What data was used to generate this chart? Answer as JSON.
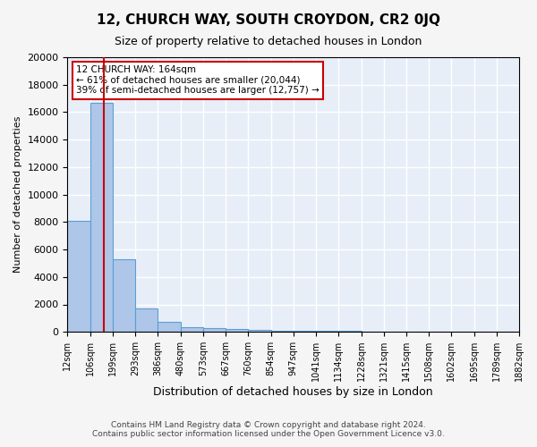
{
  "title": "12, CHURCH WAY, SOUTH CROYDON, CR2 0JQ",
  "subtitle": "Size of property relative to detached houses in London",
  "xlabel": "Distribution of detached houses by size in London",
  "ylabel": "Number of detached properties",
  "bar_color": "#aec6e8",
  "bar_edge_color": "#5a9fd4",
  "background_color": "#e8eef8",
  "grid_color": "#ffffff",
  "bin_edges": [
    12,
    106,
    199,
    293,
    386,
    480,
    573,
    667,
    760,
    854,
    947,
    1041,
    1134,
    1228,
    1321,
    1415,
    1508,
    1602,
    1695,
    1789,
    1882
  ],
  "bar_heights": [
    8100,
    16700,
    5300,
    1700,
    700,
    350,
    280,
    200,
    150,
    100,
    80,
    60,
    50,
    40,
    30,
    25,
    20,
    18,
    15,
    12
  ],
  "xlim": [
    12,
    1882
  ],
  "ylim": [
    0,
    20000
  ],
  "yticks": [
    0,
    2000,
    4000,
    6000,
    8000,
    10000,
    12000,
    14000,
    16000,
    18000,
    20000
  ],
  "xtick_labels": [
    "12sqm",
    "106sqm",
    "199sqm",
    "293sqm",
    "386sqm",
    "480sqm",
    "573sqm",
    "667sqm",
    "760sqm",
    "854sqm",
    "947sqm",
    "1041sqm",
    "1134sqm",
    "1228sqm",
    "1321sqm",
    "1415sqm",
    "1508sqm",
    "1602sqm",
    "1695sqm",
    "1789sqm",
    "1882sqm"
  ],
  "property_line_x": 164,
  "annotation_text": "12 CHURCH WAY: 164sqm\n← 61% of detached houses are smaller (20,044)\n39% of semi-detached houses are larger (12,757) →",
  "annotation_box_color": "#ffffff",
  "annotation_border_color": "#cc0000",
  "red_line_color": "#cc0000",
  "footer_line1": "Contains HM Land Registry data © Crown copyright and database right 2024.",
  "footer_line2": "Contains public sector information licensed under the Open Government Licence v3.0."
}
